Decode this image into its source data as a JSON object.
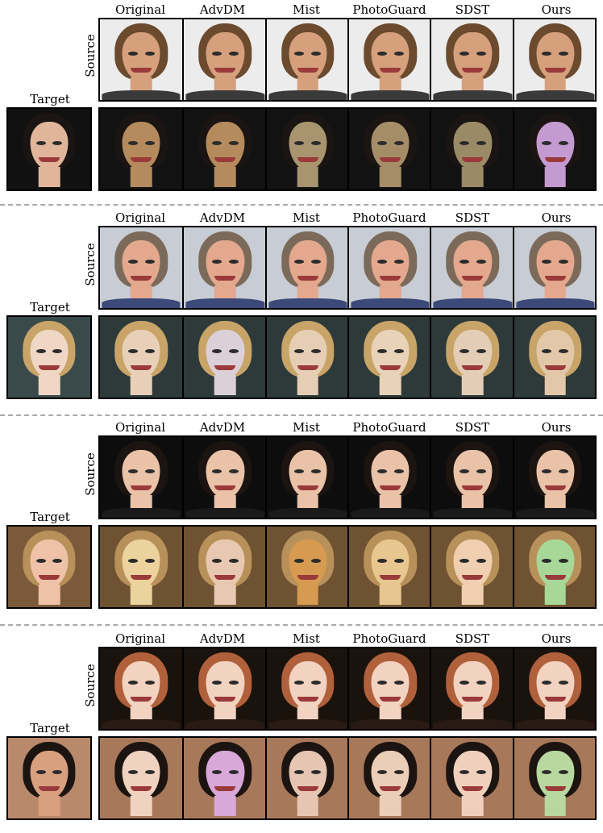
{
  "figure": {
    "column_headers": [
      "Original",
      "AdvDM",
      "Mist",
      "PhotoGuard",
      "SDST",
      "Ours"
    ],
    "source_label": "Source",
    "target_label": "Target",
    "panels": [
      {
        "source_bg": "#ececec",
        "source_skin": "#d6a07d",
        "source_hair": "#6b4a2e",
        "source_shirt": "#3a3a3a",
        "target_bg": "#111111",
        "target_skin": "#e0b59a",
        "target_hair": "#1a1412",
        "swap_bg": "#121212",
        "swap_hair": "#1a1412",
        "swap_skins": [
          "#b58a5c",
          "#b58a5c",
          "#a99470",
          "#a58d68",
          "#9a8a66",
          "#c49ad0"
        ]
      },
      {
        "source_bg": "#c8ccd4",
        "source_skin": "#e3a88d",
        "source_hair": "#7b6a5a",
        "source_shirt": "#3c4a7a",
        "target_bg": "#3a4a4a",
        "target_skin": "#f0d6c4",
        "target_hair": "#c8a468",
        "swap_bg": "#2e3a3a",
        "swap_hair": "#c8a468",
        "swap_skins": [
          "#e8d0b8",
          "#dcd0d8",
          "#e6ceb4",
          "#e8d2b8",
          "#e4cdb6",
          "#e2c8a8"
        ]
      },
      {
        "source_bg": "#0d0d0d",
        "source_skin": "#e9c2a8",
        "source_hair": "#1c1410",
        "source_shirt": "#1a1a1a",
        "target_bg": "#7a5a3a",
        "target_skin": "#efc2a8",
        "target_hair": "#b8905a",
        "swap_bg": "#6e5232",
        "swap_hair": "#b8905a",
        "swap_skins": [
          "#ecd29c",
          "#e8c8b0",
          "#d69a50",
          "#e8c690",
          "#f0cfb0",
          "#a8d898"
        ]
      },
      {
        "source_bg": "#1a120c",
        "source_skin": "#f2d2c0",
        "source_hair": "#b0603a",
        "source_shirt": "#2a1a14",
        "target_bg": "#b8896a",
        "target_skin": "#d8a07e",
        "target_hair": "#1c1410",
        "swap_bg": "#a8785a",
        "swap_hair": "#1c1410",
        "swap_skins": [
          "#f0d2c0",
          "#d8a8d8",
          "#e6c6b2",
          "#eccdb6",
          "#f0d0bc",
          "#b8d8a0"
        ]
      }
    ]
  }
}
